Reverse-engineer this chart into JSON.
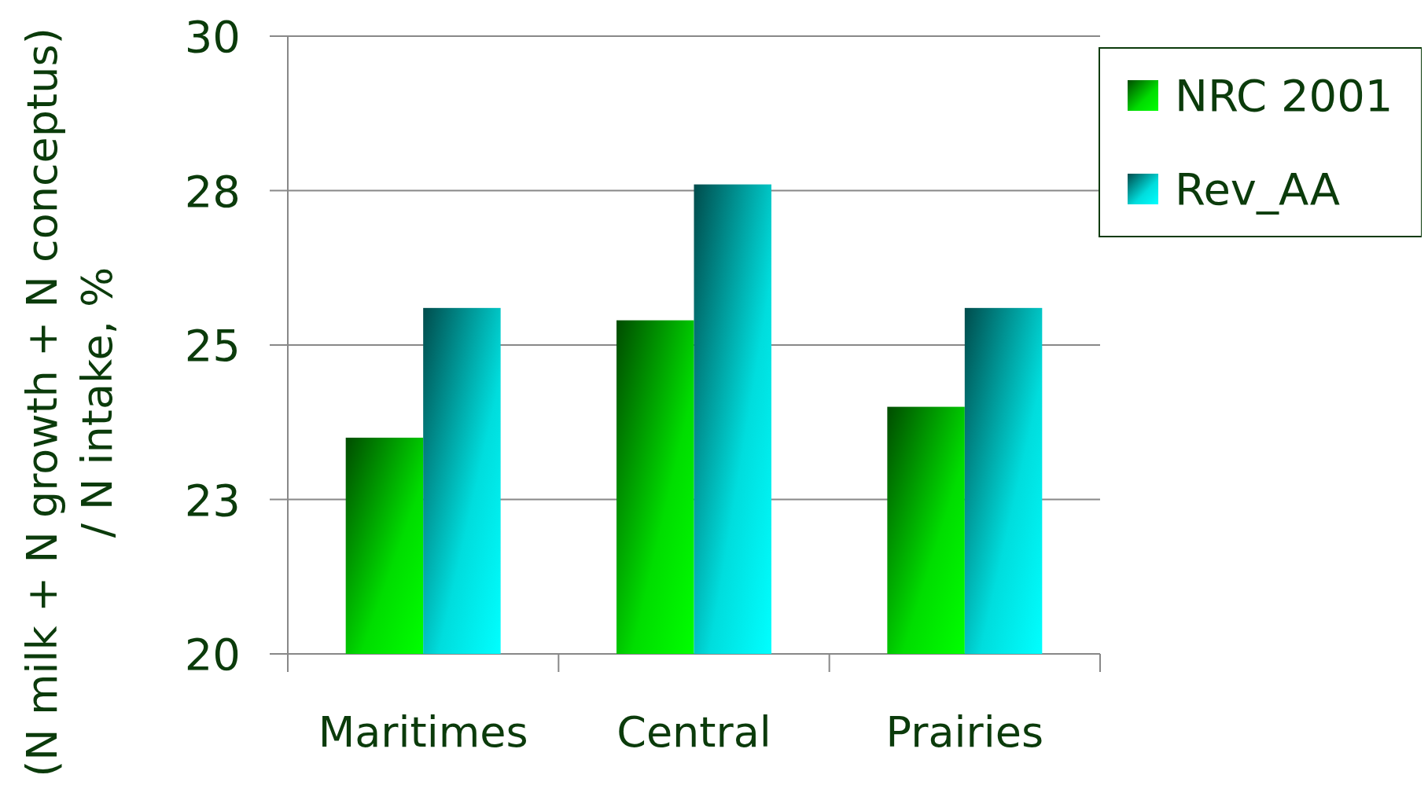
{
  "chart_data": {
    "type": "bar",
    "ylabel": "(N milk + N growth + N conceptus)\n/ N intake, %",
    "categories": [
      "Maritimes",
      "Central",
      "Prairies"
    ],
    "series": [
      {
        "name": "NRC 2001",
        "color": "#00dd00",
        "values": [
          23.5,
          25.4,
          24.0
        ]
      },
      {
        "name": "Rev_AA",
        "color": "#00dddd",
        "values": [
          25.6,
          27.6,
          25.6
        ]
      }
    ],
    "ylim": [
      20,
      30
    ],
    "yticks": [
      20,
      {
        "value": 22.5,
        "label": "23"
      },
      25,
      {
        "value": 27.5,
        "label": "28"
      },
      30
    ],
    "grid": "y",
    "legend": "top right"
  }
}
